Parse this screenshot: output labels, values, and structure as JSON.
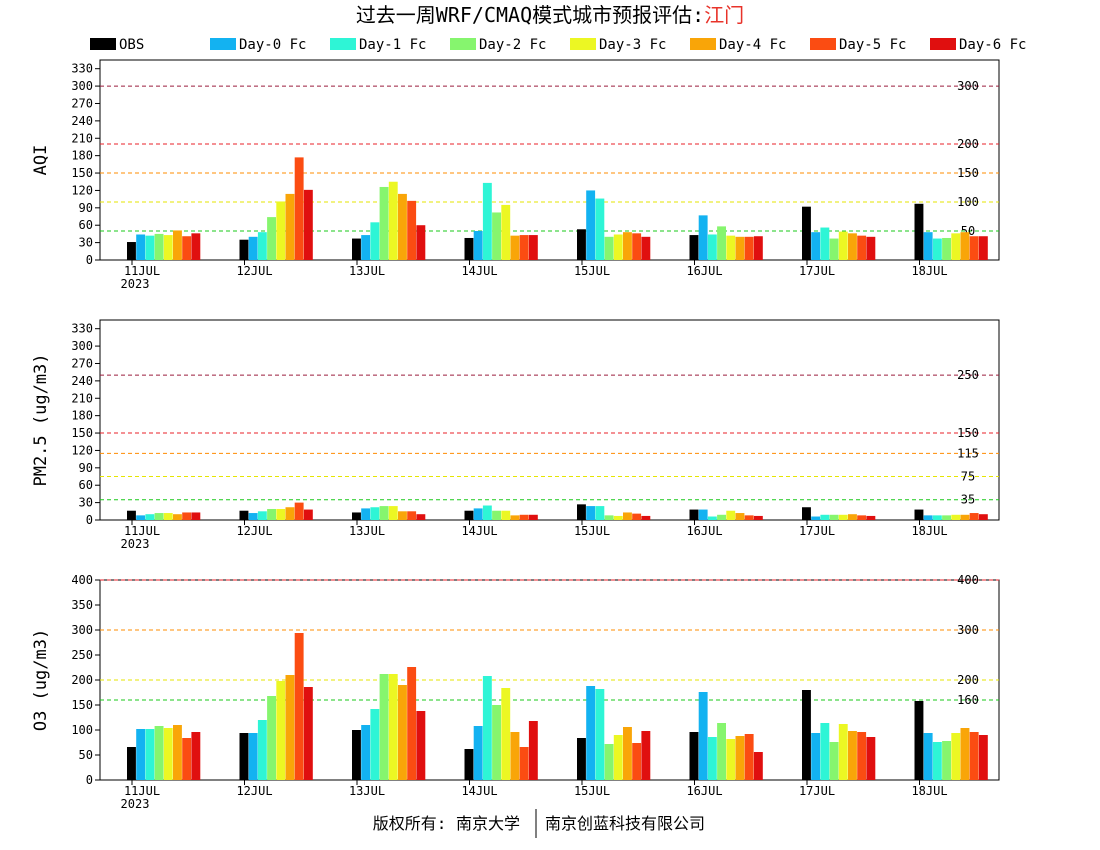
{
  "title": {
    "main": "过去一周WRF/CMAQ模式城市预报评估:",
    "city": "江门",
    "main_color": "#000000",
    "city_color": "#e8332a"
  },
  "footer": {
    "left": "版权所有: 南京大学",
    "right": "南京创蓝科技有限公司"
  },
  "legend": [
    {
      "label": "OBS",
      "color": "#000000"
    },
    {
      "label": "Day-0 Fc",
      "color": "#13b2f1"
    },
    {
      "label": "Day-1 Fc",
      "color": "#2ef5d6"
    },
    {
      "label": "Day-2 Fc",
      "color": "#86f56e"
    },
    {
      "label": "Day-3 Fc",
      "color": "#ecf723"
    },
    {
      "label": "Day-4 Fc",
      "color": "#f9a508"
    },
    {
      "label": "Day-5 Fc",
      "color": "#fb4c12"
    },
    {
      "label": "Day-6 Fc",
      "color": "#e00f0f"
    }
  ],
  "chart_data": [
    {
      "type": "bar",
      "ylabel": "AQI",
      "ylim": [
        0,
        345
      ],
      "yticks": [
        0,
        30,
        60,
        90,
        120,
        150,
        180,
        210,
        240,
        270,
        300,
        330
      ],
      "categories": [
        "11JUL",
        "12JUL",
        "13JUL",
        "14JUL",
        "15JUL",
        "16JUL",
        "17JUL",
        "18JUL"
      ],
      "year_label": "2023",
      "thresholds": [
        {
          "value": 50,
          "label": "50",
          "color": "#18c918"
        },
        {
          "value": 100,
          "label": "100",
          "color": "#e6e600"
        },
        {
          "value": 150,
          "label": "150",
          "color": "#ff8c00"
        },
        {
          "value": 200,
          "label": "200",
          "color": "#e8202a"
        },
        {
          "value": 300,
          "label": "300",
          "color": "#9b1c3c"
        }
      ],
      "series": [
        {
          "name": "OBS",
          "values": [
            31,
            35,
            37,
            38,
            53,
            43,
            92,
            97
          ]
        },
        {
          "name": "Day-0 Fc",
          "values": [
            44,
            40,
            43,
            50,
            120,
            77,
            48,
            48
          ]
        },
        {
          "name": "Day-1 Fc",
          "values": [
            42,
            48,
            65,
            133,
            106,
            44,
            56,
            37
          ]
        },
        {
          "name": "Day-2 Fc",
          "values": [
            45,
            74,
            126,
            82,
            40,
            58,
            37,
            38
          ]
        },
        {
          "name": "Day-3 Fc",
          "values": [
            43,
            101,
            135,
            95,
            44,
            42,
            49,
            46
          ]
        },
        {
          "name": "Day-4 Fc",
          "values": [
            51,
            114,
            114,
            42,
            48,
            40,
            46,
            48
          ]
        },
        {
          "name": "Day-5 Fc",
          "values": [
            41,
            177,
            102,
            43,
            46,
            40,
            42,
            41
          ]
        },
        {
          "name": "Day-6 Fc",
          "values": [
            46,
            121,
            60,
            43,
            40,
            41,
            40,
            41
          ]
        }
      ]
    },
    {
      "type": "bar",
      "ylabel": "PM2.5 (ug/m3)",
      "ylim": [
        0,
        345
      ],
      "yticks": [
        0,
        30,
        60,
        90,
        120,
        150,
        180,
        210,
        240,
        270,
        300,
        330
      ],
      "categories": [
        "11JUL",
        "12JUL",
        "13JUL",
        "14JUL",
        "15JUL",
        "16JUL",
        "17JUL",
        "18JUL"
      ],
      "year_label": "2023",
      "thresholds": [
        {
          "value": 35,
          "label": "35",
          "color": "#18c918"
        },
        {
          "value": 75,
          "label": "75",
          "color": "#e6e600"
        },
        {
          "value": 115,
          "label": "115",
          "color": "#ff8c00"
        },
        {
          "value": 150,
          "label": "150",
          "color": "#e8202a"
        },
        {
          "value": 250,
          "label": "250",
          "color": "#9b1c3c"
        }
      ],
      "series": [
        {
          "name": "OBS",
          "values": [
            16,
            16,
            13,
            16,
            27,
            18,
            22,
            18
          ]
        },
        {
          "name": "Day-0 Fc",
          "values": [
            8,
            12,
            20,
            20,
            24,
            18,
            6,
            8
          ]
        },
        {
          "name": "Day-1 Fc",
          "values": [
            10,
            15,
            22,
            25,
            24,
            6,
            9,
            8
          ]
        },
        {
          "name": "Day-2 Fc",
          "values": [
            12,
            19,
            24,
            16,
            8,
            9,
            9,
            8
          ]
        },
        {
          "name": "Day-3 Fc",
          "values": [
            12,
            19,
            24,
            16,
            7,
            16,
            9,
            9
          ]
        },
        {
          "name": "Day-4 Fc",
          "values": [
            10,
            22,
            15,
            8,
            13,
            12,
            10,
            9
          ]
        },
        {
          "name": "Day-5 Fc",
          "values": [
            13,
            30,
            15,
            9,
            11,
            8,
            8,
            12
          ]
        },
        {
          "name": "Day-6 Fc",
          "values": [
            13,
            18,
            10,
            9,
            7,
            7,
            7,
            10
          ]
        }
      ]
    },
    {
      "type": "bar",
      "ylabel": "O3 (ug/m3)",
      "ylim": [
        0,
        400
      ],
      "yticks": [
        0,
        50,
        100,
        150,
        200,
        250,
        300,
        350,
        400
      ],
      "categories": [
        "11JUL",
        "12JUL",
        "13JUL",
        "14JUL",
        "15JUL",
        "16JUL",
        "17JUL",
        "18JUL"
      ],
      "year_label": "2023",
      "thresholds": [
        {
          "value": 160,
          "label": "160",
          "color": "#18c918"
        },
        {
          "value": 200,
          "label": "200",
          "color": "#e6e600"
        },
        {
          "value": 300,
          "label": "300",
          "color": "#ff8c00"
        },
        {
          "value": 400,
          "label": "400",
          "color": "#e8202a"
        }
      ],
      "series": [
        {
          "name": "OBS",
          "values": [
            66,
            94,
            100,
            62,
            84,
            96,
            180,
            158
          ]
        },
        {
          "name": "Day-0 Fc",
          "values": [
            102,
            94,
            110,
            108,
            188,
            176,
            94,
            94
          ]
        },
        {
          "name": "Day-1 Fc",
          "values": [
            102,
            120,
            142,
            208,
            182,
            86,
            114,
            76
          ]
        },
        {
          "name": "Day-2 Fc",
          "values": [
            108,
            168,
            212,
            150,
            72,
            114,
            76,
            78
          ]
        },
        {
          "name": "Day-3 Fc",
          "values": [
            104,
            198,
            212,
            184,
            90,
            82,
            112,
            94
          ]
        },
        {
          "name": "Day-4 Fc",
          "values": [
            110,
            210,
            190,
            96,
            106,
            88,
            98,
            104
          ]
        },
        {
          "name": "Day-5 Fc",
          "values": [
            84,
            294,
            226,
            66,
            74,
            92,
            96,
            96
          ]
        },
        {
          "name": "Day-6 Fc",
          "values": [
            96,
            186,
            138,
            118,
            98,
            56,
            86,
            90
          ]
        }
      ]
    }
  ]
}
